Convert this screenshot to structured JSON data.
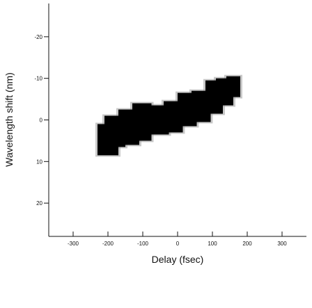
{
  "chart_data": {
    "type": "heatmap",
    "title": "",
    "xlabel": "Delay (fsec)",
    "ylabel": "Wavelength shift (nm)",
    "xlim": [
      -370,
      370
    ],
    "ylim": [
      -28,
      28
    ],
    "y_inverted": true,
    "x_ticks": [
      -300,
      -200,
      -100,
      0,
      100,
      200,
      300
    ],
    "y_ticks": [
      -20,
      -10,
      0,
      10,
      20
    ],
    "x_tick_labels": [
      "-300",
      "-200",
      "-100",
      "0",
      "100",
      "200",
      "300"
    ],
    "y_tick_labels": [
      "-20",
      "-10",
      "0",
      "10",
      "20"
    ],
    "grid": false,
    "color": "#000000",
    "blocks": [
      {
        "x": [
          -230,
          -170
        ],
        "y": [
          1.0,
          8.5
        ]
      },
      {
        "x": [
          -210,
          -150
        ],
        "y": [
          -1.0,
          6.5
        ]
      },
      {
        "x": [
          -170,
          -110
        ],
        "y": [
          -2.5,
          6.0
        ]
      },
      {
        "x": [
          -130,
          -75
        ],
        "y": [
          -4.0,
          5.0
        ]
      },
      {
        "x": [
          -85,
          -25
        ],
        "y": [
          -3.5,
          3.5
        ]
      },
      {
        "x": [
          -40,
          15
        ],
        "y": [
          -4.5,
          3.0
        ]
      },
      {
        "x": [
          0,
          55
        ],
        "y": [
          -6.5,
          1.5
        ]
      },
      {
        "x": [
          40,
          95
        ],
        "y": [
          -7.0,
          0.5
        ]
      },
      {
        "x": [
          80,
          130
        ],
        "y": [
          -9.5,
          -1.5
        ]
      },
      {
        "x": [
          110,
          160
        ],
        "y": [
          -10.0,
          -3.5
        ]
      },
      {
        "x": [
          140,
          180
        ],
        "y": [
          -10.5,
          -5.5
        ]
      }
    ]
  }
}
